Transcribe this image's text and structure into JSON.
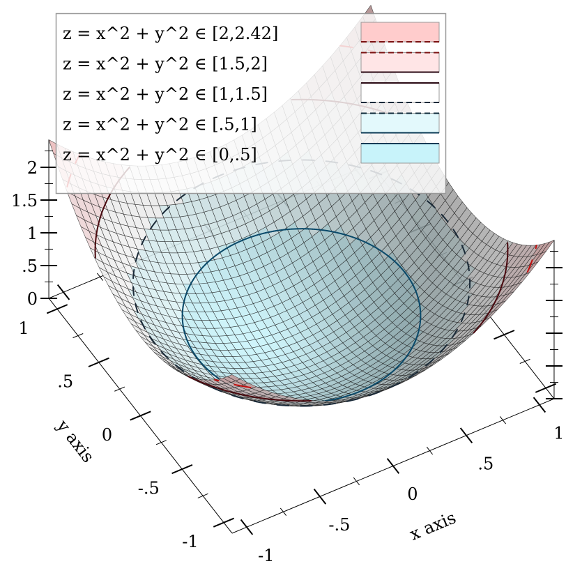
{
  "chart_data": {
    "type": "surface",
    "function": "z = x^2 + y^2",
    "x_range": [
      -1.1,
      1.1
    ],
    "y_range": [
      -1.1,
      1.1
    ],
    "z_range": [
      0,
      2.42
    ],
    "xlabel": "x axis",
    "ylabel": "y axis",
    "zlabel": "",
    "x_ticks": [
      {
        "value": -1,
        "label": "-1"
      },
      {
        "value": -0.5,
        "label": "-.5"
      },
      {
        "value": 0,
        "label": "0"
      },
      {
        "value": 0.5,
        "label": ".5"
      },
      {
        "value": 1,
        "label": "1"
      }
    ],
    "y_ticks": [
      {
        "value": -1,
        "label": "-1"
      },
      {
        "value": -0.5,
        "label": "-.5"
      },
      {
        "value": 0,
        "label": "0"
      },
      {
        "value": 0.5,
        "label": ".5"
      },
      {
        "value": 1,
        "label": "1"
      }
    ],
    "z_ticks": [
      {
        "value": 0,
        "label": "0"
      },
      {
        "value": 0.5,
        "label": ".5"
      },
      {
        "value": 1,
        "label": "1"
      },
      {
        "value": 1.5,
        "label": "1.5"
      },
      {
        "value": 2,
        "label": "2"
      }
    ],
    "contour_intervals": [
      {
        "label": "z = x^2 + y^2 ∈ [2,2.42]",
        "range": [
          2,
          2.42
        ],
        "fill": "#ffcccc",
        "top_line": "none",
        "bottom_line": "dashed",
        "bottom_color": "#7a1010"
      },
      {
        "label": "z = x^2 + y^2 ∈ [1.5,2]",
        "range": [
          1.5,
          2
        ],
        "fill": "#ffe5e6",
        "top_line": "dashed",
        "top_color": "#7a1010",
        "bottom_line": "solid",
        "bottom_color": "#2a0a14"
      },
      {
        "label": "z = x^2 + y^2 ∈ [1,1.5]",
        "range": [
          1,
          1.5
        ],
        "fill": "#ffffff",
        "top_line": "solid",
        "top_color": "#2a0a14",
        "bottom_line": "dashed",
        "bottom_color": "#0f2a3a"
      },
      {
        "label": "z = x^2 + y^2 ∈ [.5,1]",
        "range": [
          0.5,
          1
        ],
        "fill": "#e3f9fc",
        "top_line": "dashed",
        "top_color": "#0f2a3a",
        "bottom_line": "solid",
        "bottom_color": "#0b3a55"
      },
      {
        "label": "z = x^2 + y^2 ∈ [0,.5]",
        "range": [
          0,
          0.5
        ],
        "fill": "#c8f3fa",
        "top_line": "solid",
        "top_color": "#0b3a55",
        "bottom_line": "none"
      }
    ],
    "contour_lines": [
      {
        "level": 0.5,
        "style": "solid",
        "color": "#0b4a6a"
      },
      {
        "level": 1,
        "style": "dashed",
        "color": "#1a2a38"
      },
      {
        "level": 1.5,
        "style": "solid",
        "color": "#4a0a10"
      },
      {
        "level": 2,
        "style": "dashed",
        "color": "#c01010"
      }
    ],
    "legend_position": "top"
  }
}
